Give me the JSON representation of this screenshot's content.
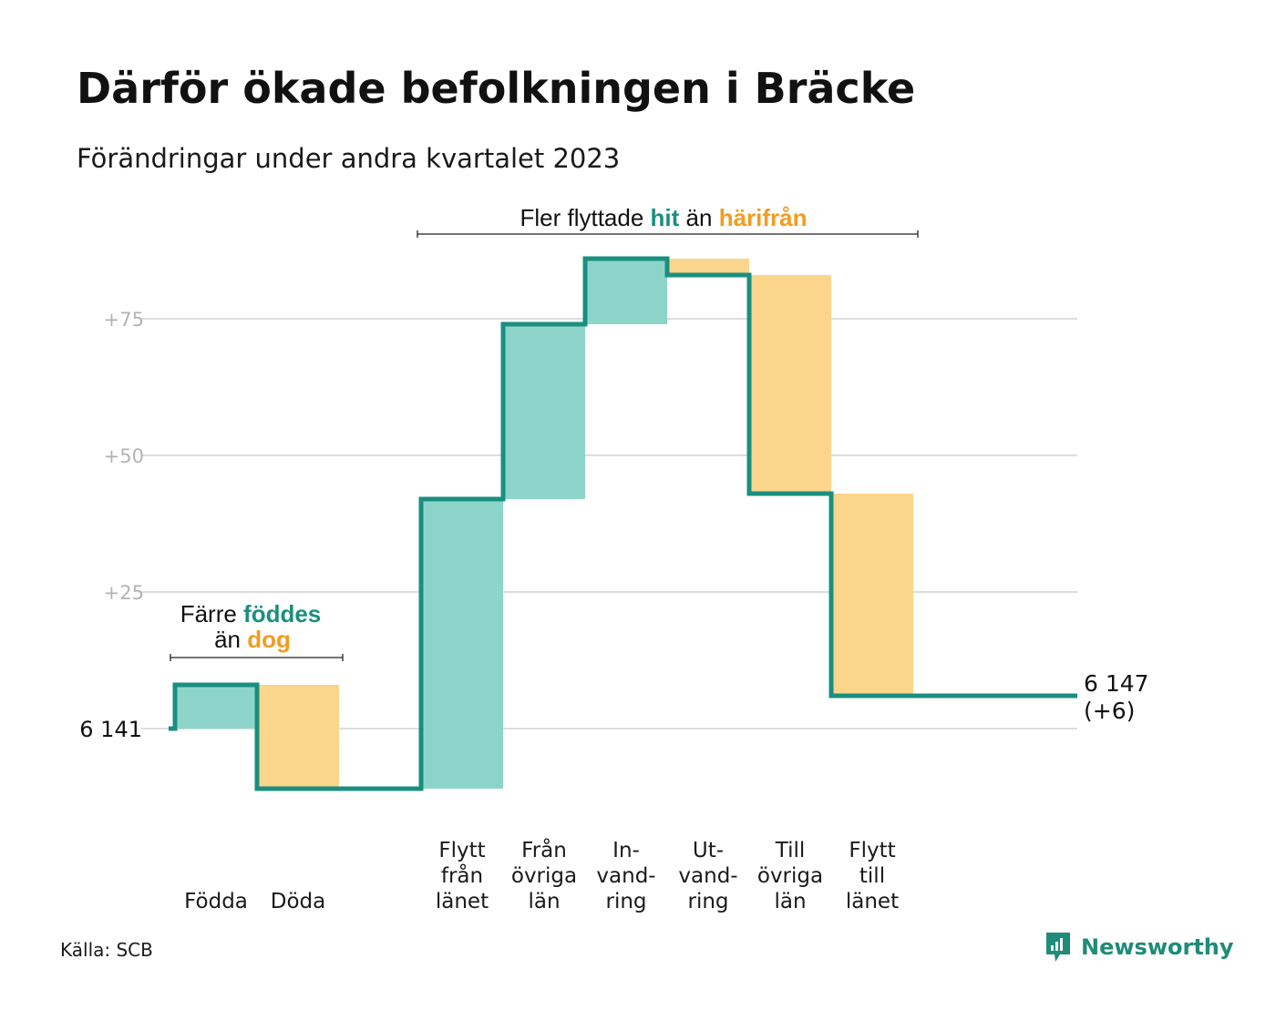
{
  "title": "Därför ökade befolkningen i Bräcke",
  "subtitle": "Förändringar under andra kvartalet 2023",
  "source": "Källa: SCB",
  "brand": "Newsworthy",
  "colors": {
    "increase_fill": "#8dd5cb",
    "decrease_fill": "#fad58c",
    "line": "#1a8f7f",
    "accent_increase_text": "#1a8f7f",
    "accent_decrease_text": "#f29c1f",
    "grid": "#dddddd"
  },
  "annotations": {
    "births_deaths": {
      "prefix": "Färre",
      "hi": "föddes",
      "mid": "än",
      "lo": "dog"
    },
    "migration": {
      "prefix": "Fler flyttade",
      "hi": "hit",
      "mid": "än",
      "lo": "härifrån"
    }
  },
  "chart_data": {
    "type": "waterfall",
    "baseline_value": 6141,
    "baseline_label": "6  141",
    "end_label_line1": "6 147",
    "end_label_line2": "(+6)",
    "yticks": [
      {
        "value": 25,
        "label": "+25"
      },
      {
        "value": 50,
        "label": "+50"
      },
      {
        "value": 75,
        "label": "+75"
      }
    ],
    "ylim": [
      -15,
      88
    ],
    "steps": [
      {
        "category": [
          "",
          "",
          "Födda"
        ],
        "delta": 8,
        "kind": "increase"
      },
      {
        "category": [
          "",
          "",
          "Döda"
        ],
        "delta": -19,
        "kind": "decrease"
      },
      {
        "category": [
          "",
          "",
          ""
        ],
        "delta": 0,
        "kind": "gap"
      },
      {
        "category": [
          "Flytt",
          "från",
          "länet"
        ],
        "delta": 53,
        "kind": "increase"
      },
      {
        "category": [
          "Från",
          "övriga",
          "län"
        ],
        "delta": 32,
        "kind": "increase"
      },
      {
        "category": [
          "In-",
          "vand-",
          "ring"
        ],
        "delta": 12,
        "kind": "increase"
      },
      {
        "category": [
          "Ut-",
          "vand-",
          "ring"
        ],
        "delta": -3,
        "kind": "decrease"
      },
      {
        "category": [
          "Till",
          "övriga",
          "län"
        ],
        "delta": -40,
        "kind": "decrease"
      },
      {
        "category": [
          "Flytt",
          "till",
          "länet"
        ],
        "delta": -37,
        "kind": "decrease"
      }
    ],
    "net_change": 6
  }
}
